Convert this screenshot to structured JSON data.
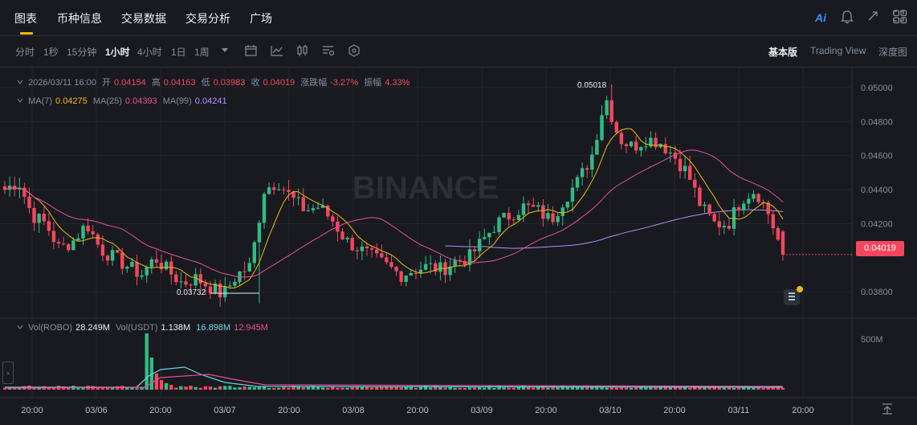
{
  "nav": {
    "tabs": [
      "图表",
      "币种信息",
      "交易数据",
      "交易分析",
      "广场"
    ],
    "ai_label": "Ai"
  },
  "toolbar": {
    "timeframes": [
      "分时",
      "1秒",
      "15分钟",
      "1小时",
      "4小时",
      "1日",
      "1周"
    ],
    "active_timeframe": "1小时",
    "modes": [
      "基本版",
      "Trading View",
      "深度图"
    ],
    "active_mode": "基本版"
  },
  "ohlc": {
    "date": "2026/03/11 16:00",
    "open_label": "开",
    "open": "0.04154",
    "high_label": "高",
    "high": "0.04163",
    "low_label": "低",
    "low": "0.03983",
    "close_label": "收",
    "close": "0.04019",
    "change_label": "涨跌幅",
    "change": "-3.27%",
    "amp_label": "振幅",
    "amp": "4.33%"
  },
  "ma": {
    "ma7_label": "MA(7)",
    "ma7": "0.04275",
    "ma25_label": "MA(25)",
    "ma25": "0.04393",
    "ma99_label": "MA(99)",
    "ma99": "0.04241"
  },
  "vol": {
    "label1": "Vol(ROBO)",
    "val1": "28.249M",
    "label2": "Vol(USDT)",
    "val2": "1.138M",
    "val3": "16.898M",
    "val4": "12.945M"
  },
  "watermark": "BINANCE",
  "current_price": "0.04019",
  "high_marker": "0.05018",
  "low_marker": "0.03732",
  "colors": {
    "up": "#2ebd85",
    "down": "#f6465d",
    "ma7": "#f0b90b",
    "ma25": "#e84f9a",
    "ma99": "#b48cff",
    "accent": "#f0b90b"
  },
  "chart_data": {
    "type": "candlestick",
    "price_ticks": [
      "0.05000",
      "0.04800",
      "0.04600",
      "0.04400",
      "0.04200",
      "0.03800"
    ],
    "price_tick_values": [
      0.05,
      0.048,
      0.046,
      0.044,
      0.042,
      0.038
    ],
    "volume_tick": "500M",
    "x_ticks": [
      "20:00",
      "03/06",
      "20:00",
      "03/07",
      "20:00",
      "03/08",
      "20:00",
      "03/09",
      "20:00",
      "03/10",
      "20:00",
      "03/11",
      "20:00"
    ],
    "ylim": [
      0.0365,
      0.0508
    ],
    "close_path": [
      0.044,
      0.0445,
      0.0425,
      0.042,
      0.0405,
      0.041,
      0.042,
      0.0405,
      0.04,
      0.0395,
      0.039,
      0.04,
      0.0392,
      0.0385,
      0.0388,
      0.0383,
      0.0378,
      0.039,
      0.0395,
      0.044,
      0.0445,
      0.0435,
      0.0428,
      0.043,
      0.0422,
      0.041,
      0.0405,
      0.04,
      0.0395,
      0.039,
      0.0393,
      0.0395,
      0.0393,
      0.0398,
      0.04,
      0.041,
      0.042,
      0.0425,
      0.043,
      0.0428,
      0.0422,
      0.0435,
      0.0445,
      0.046,
      0.0495,
      0.047,
      0.0465,
      0.047,
      0.0468,
      0.046,
      0.045,
      0.043,
      0.042,
      0.042,
      0.0435,
      0.044,
      0.0425,
      0.0402
    ],
    "high": 0.05018,
    "low": 0.03732
  }
}
